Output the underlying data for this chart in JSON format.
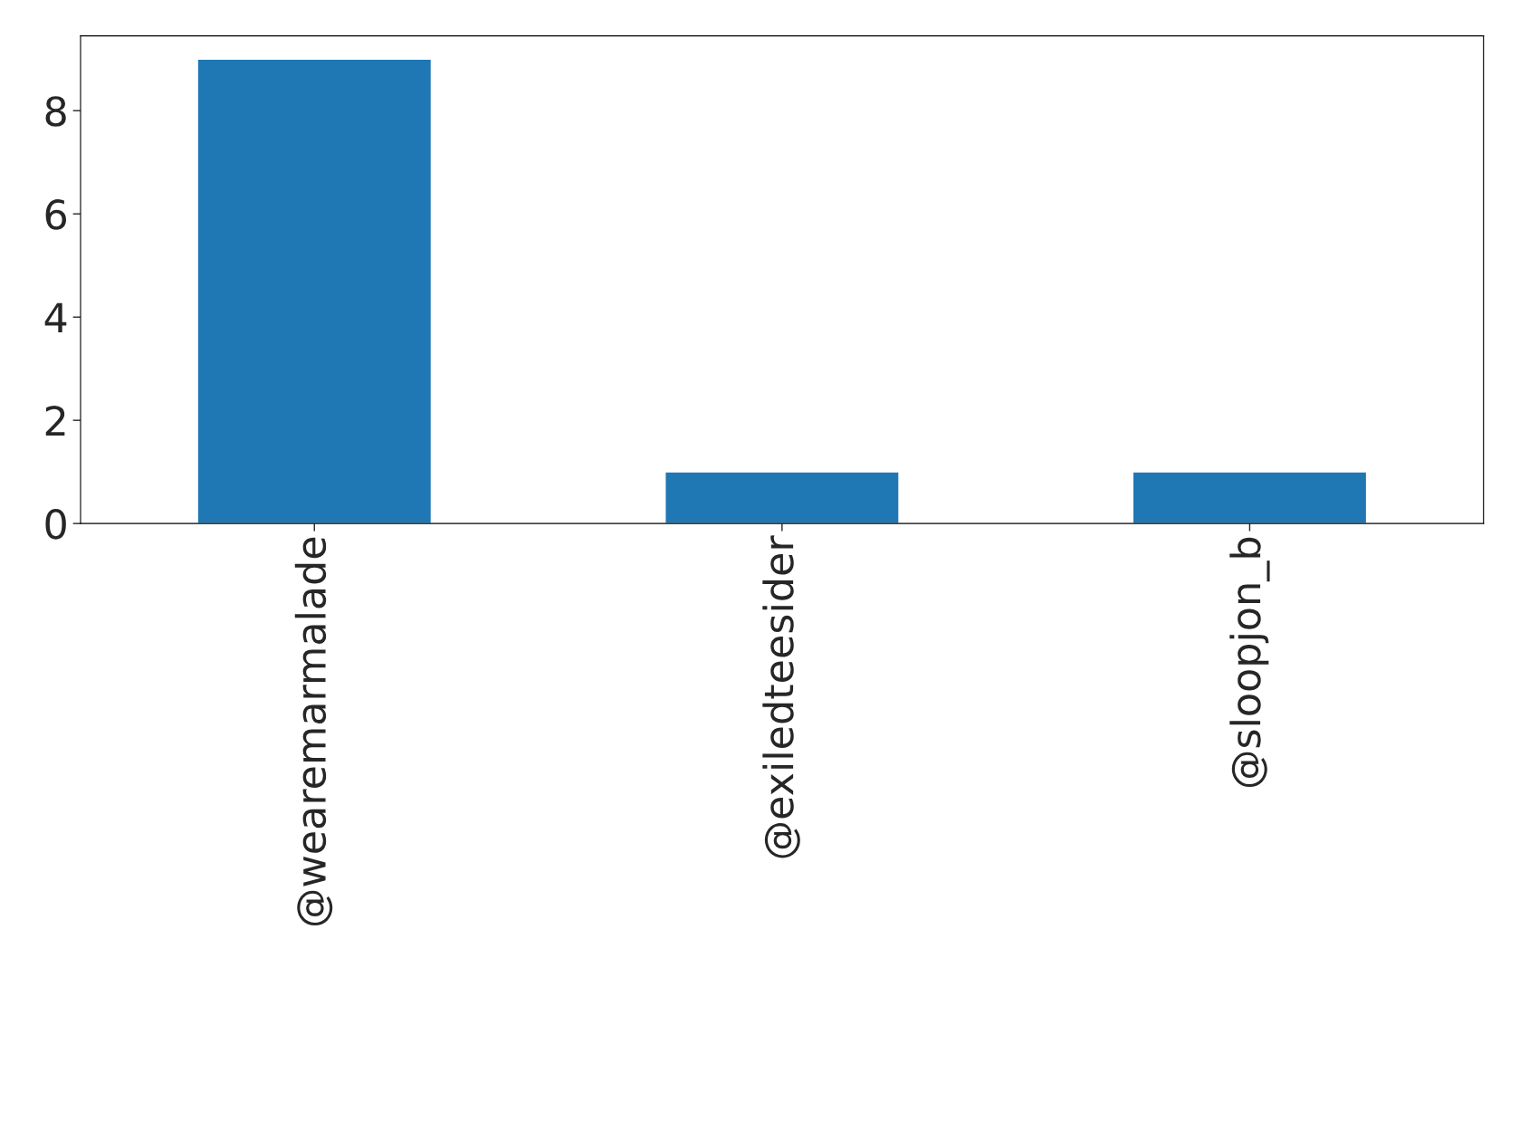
{
  "chart_data": {
    "type": "bar",
    "categories": [
      "@wearemarmalade",
      "@exiledteesider",
      "@sloopjon_b"
    ],
    "values": [
      9,
      1,
      1
    ],
    "color": "#1f77b4",
    "ylim": [
      0,
      9.45
    ],
    "yticks": [
      0,
      2,
      4,
      6,
      8
    ],
    "grid": false,
    "legend": false
  }
}
